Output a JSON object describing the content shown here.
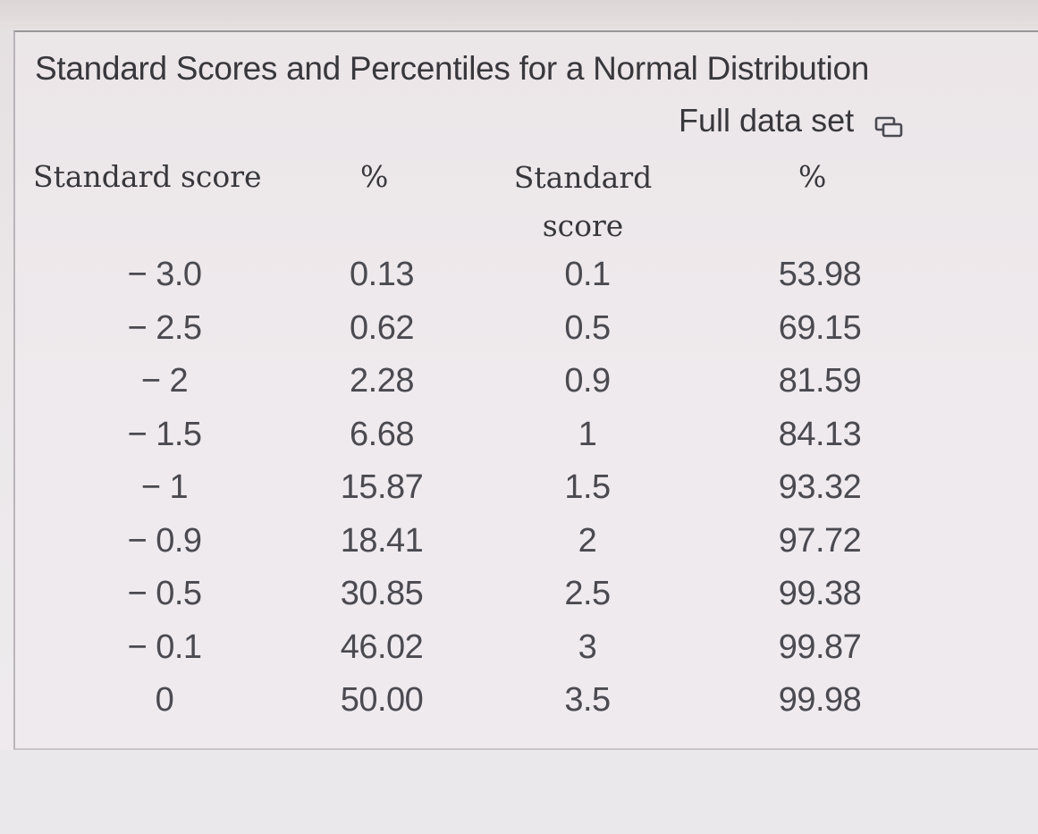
{
  "title": "Standard Scores and Percentiles for a Normal Distribution",
  "full_data_set": {
    "label": "Full data set",
    "icon": "copy-icon"
  },
  "headers": {
    "col1": "Standard score",
    "col2": "%",
    "col3_line1": "Standard",
    "col3_line2": "score",
    "col4": "%"
  },
  "rows": [
    {
      "score_left": "− 3.0",
      "pct_left": "0.13",
      "score_right": "0.1",
      "pct_right": "53.98"
    },
    {
      "score_left": "− 2.5",
      "pct_left": "0.62",
      "score_right": "0.5",
      "pct_right": "69.15"
    },
    {
      "score_left": "− 2",
      "pct_left": "2.28",
      "score_right": "0.9",
      "pct_right": "81.59"
    },
    {
      "score_left": "− 1.5",
      "pct_left": "6.68",
      "score_right": "1",
      "pct_right": "84.13"
    },
    {
      "score_left": "− 1",
      "pct_left": "15.87",
      "score_right": "1.5",
      "pct_right": "93.32"
    },
    {
      "score_left": "− 0.9",
      "pct_left": "18.41",
      "score_right": "2",
      "pct_right": "97.72"
    },
    {
      "score_left": "− 0.5",
      "pct_left": "30.85",
      "score_right": "2.5",
      "pct_right": "99.38"
    },
    {
      "score_left": "− 0.1",
      "pct_left": "46.02",
      "score_right": "3",
      "pct_right": "99.87"
    },
    {
      "score_left": "0",
      "pct_left": "50.00",
      "score_right": "3.5",
      "pct_right": "99.98"
    }
  ]
}
